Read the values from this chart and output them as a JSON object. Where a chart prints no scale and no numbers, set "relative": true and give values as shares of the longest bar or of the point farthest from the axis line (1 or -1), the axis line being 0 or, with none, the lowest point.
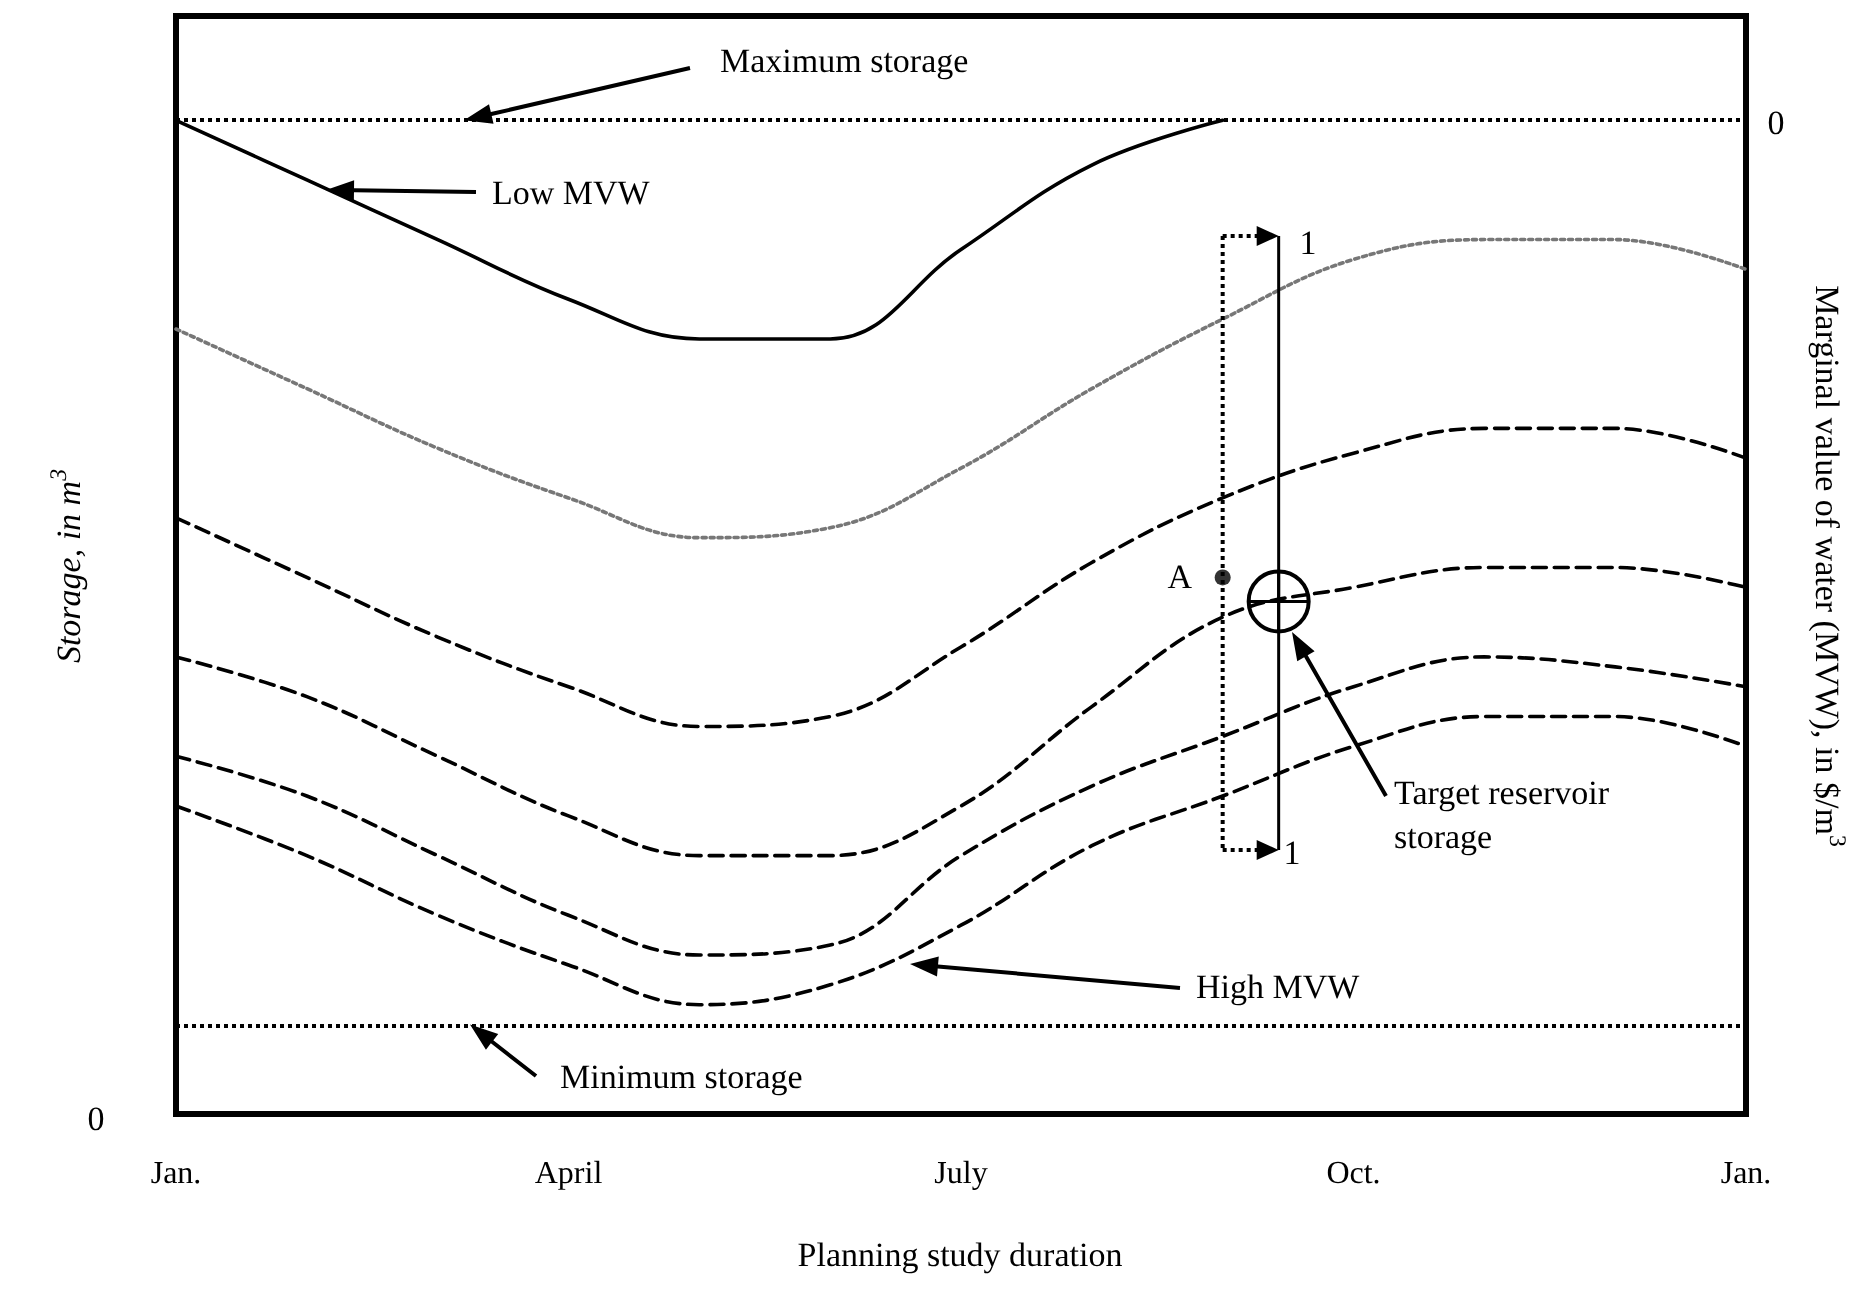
{
  "chart_data": {
    "type": "line",
    "relative": true,
    "marker": "none",
    "xlabel": "Planning study duration",
    "ylabel": "Storage, in m$^{3}$",
    "y2label": "Marginal value of water (MVW), in $/m$^{3}$",
    "categories": [
      "Jan.",
      null,
      null,
      "April",
      null,
      null,
      "July",
      null,
      null,
      "Oct.",
      null,
      null,
      "Jan."
    ],
    "series": [
      {
        "color": "#000000",
        "line_style": "solid",
        "values": [
          1,
          0.94,
          0.88,
          0.82,
          0.78,
          0.78,
          0.87,
          0.955,
          1,
          null,
          null,
          null,
          null
        ]
      },
      {
        "color": "#777777",
        "line_style": "dotted",
        "values": [
          0.79,
          0.73,
          0.67,
          0.62,
          0.58,
          0.59,
          0.65,
          0.73,
          0.8,
          0.86,
          0.88,
          0.88,
          0.85
        ]
      },
      {
        "color": "#000000",
        "line_style": "dashed",
        "values": [
          0.6,
          0.54,
          0.48,
          0.43,
          0.39,
          0.4,
          0.47,
          0.555,
          0.62,
          0.665,
          0.69,
          0.69,
          0.66
        ]
      },
      {
        "color": "#000000",
        "line_style": "dashed",
        "values": [
          0.46,
          0.42,
          0.36,
          0.3,
          0.26,
          0.26,
          0.31,
          0.41,
          0.5,
          0.53,
          0.55,
          0.55,
          0.53
        ]
      },
      {
        "color": "#000000",
        "line_style": "dashed",
        "values": [
          0.36,
          0.32,
          0.26,
          0.2,
          0.16,
          0.17,
          0.26,
          0.33,
          0.38,
          0.43,
          0.46,
          0.45,
          0.43
        ]
      },
      {
        "color": "#000000",
        "line_style": "dashed",
        "values": [
          0.31,
          0.26,
          0.2,
          0.15,
          0.11,
          0.13,
          0.19,
          0.27,
          0.32,
          0.37,
          0.4,
          0.4,
          0.37
        ]
      },
      {
        "type": "scatter",
        "marker": "circle",
        "color": "#000000",
        "values": [
          null,
          null,
          null,
          null,
          null,
          null,
          null,
          null,
          0.54,
          null,
          null,
          null,
          null
        ]
      }
    ],
    "ref_lines": [
      {
        "axis": "y",
        "value": 1,
        "label": "Maximum storage",
        "line_style": "dotted",
        "color": "#000000"
      },
      {
        "axis": "y",
        "value": 0.09,
        "label": "Minimum storage",
        "line_style": "dotted",
        "color": "#000000"
      }
    ],
    "annotations": [
      "Low MVW",
      "A",
      "Target reservoir storage",
      "High MVW",
      "0",
      "0",
      "1",
      "1"
    ]
  }
}
